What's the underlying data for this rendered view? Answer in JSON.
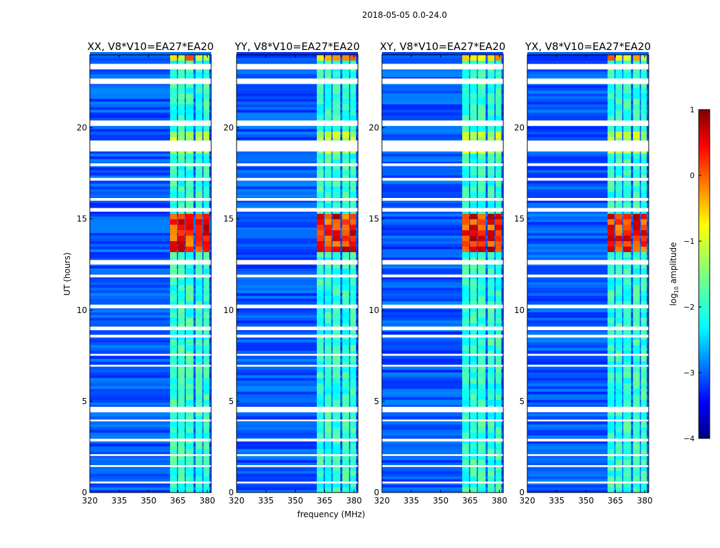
{
  "chart_data": {
    "type": "heatmap",
    "suptitle": "2018-05-05 0.0-24.0",
    "xlabel": "frequency (MHz)",
    "ylabel": "UT (hours)",
    "xlim": [
      320,
      382
    ],
    "ylim": [
      0,
      24
    ],
    "xticks": [
      320,
      335,
      350,
      365,
      380
    ],
    "yticks": [
      0,
      5,
      10,
      15,
      20
    ],
    "panels": [
      {
        "title": "XX, V8*V10=EA27*EA20"
      },
      {
        "title": "YY, V8*V10=EA27*EA20"
      },
      {
        "title": "XY, V8*V10=EA27*EA20"
      },
      {
        "title": "YX, V8*V10=EA27*EA20"
      }
    ],
    "colorbar": {
      "label": "log10 amplitude",
      "label_main": "log",
      "label_sub": "10",
      "label_rest": " amplitude",
      "min": -4,
      "max": 1,
      "ticks": [
        -4,
        -3,
        -2,
        -1,
        0,
        1
      ],
      "tick_labels": [
        "−4",
        "−3",
        "−2",
        "−1",
        "0",
        "1"
      ],
      "colormap": "jet"
    },
    "flagged_time_bands_hours": [
      [
        23.2,
        23.5
      ],
      [
        22.4,
        22.7
      ],
      [
        20.1,
        20.4
      ],
      [
        18.7,
        19.3
      ],
      [
        17.9,
        18.05
      ],
      [
        17.1,
        17.25
      ],
      [
        16.0,
        16.15
      ],
      [
        15.4,
        15.6
      ],
      [
        12.5,
        12.75
      ],
      [
        11.8,
        11.95
      ],
      [
        10.1,
        10.3
      ],
      [
        8.9,
        9.1
      ],
      [
        8.5,
        8.65
      ],
      [
        7.5,
        7.6
      ],
      [
        6.9,
        7.0
      ],
      [
        4.4,
        4.7
      ],
      [
        3.9,
        4.0
      ],
      [
        2.8,
        2.95
      ],
      [
        2.0,
        2.1
      ],
      [
        1.4,
        1.5
      ],
      [
        0.5,
        0.6
      ]
    ],
    "rfi_frequency_bands_mhz": [
      [
        361,
        364.5
      ],
      [
        365,
        368.5
      ],
      [
        369,
        373
      ],
      [
        374,
        377.5
      ],
      [
        378,
        381
      ]
    ],
    "strong_rfi_time_range_hours": [
      13.0,
      15.3
    ]
  }
}
